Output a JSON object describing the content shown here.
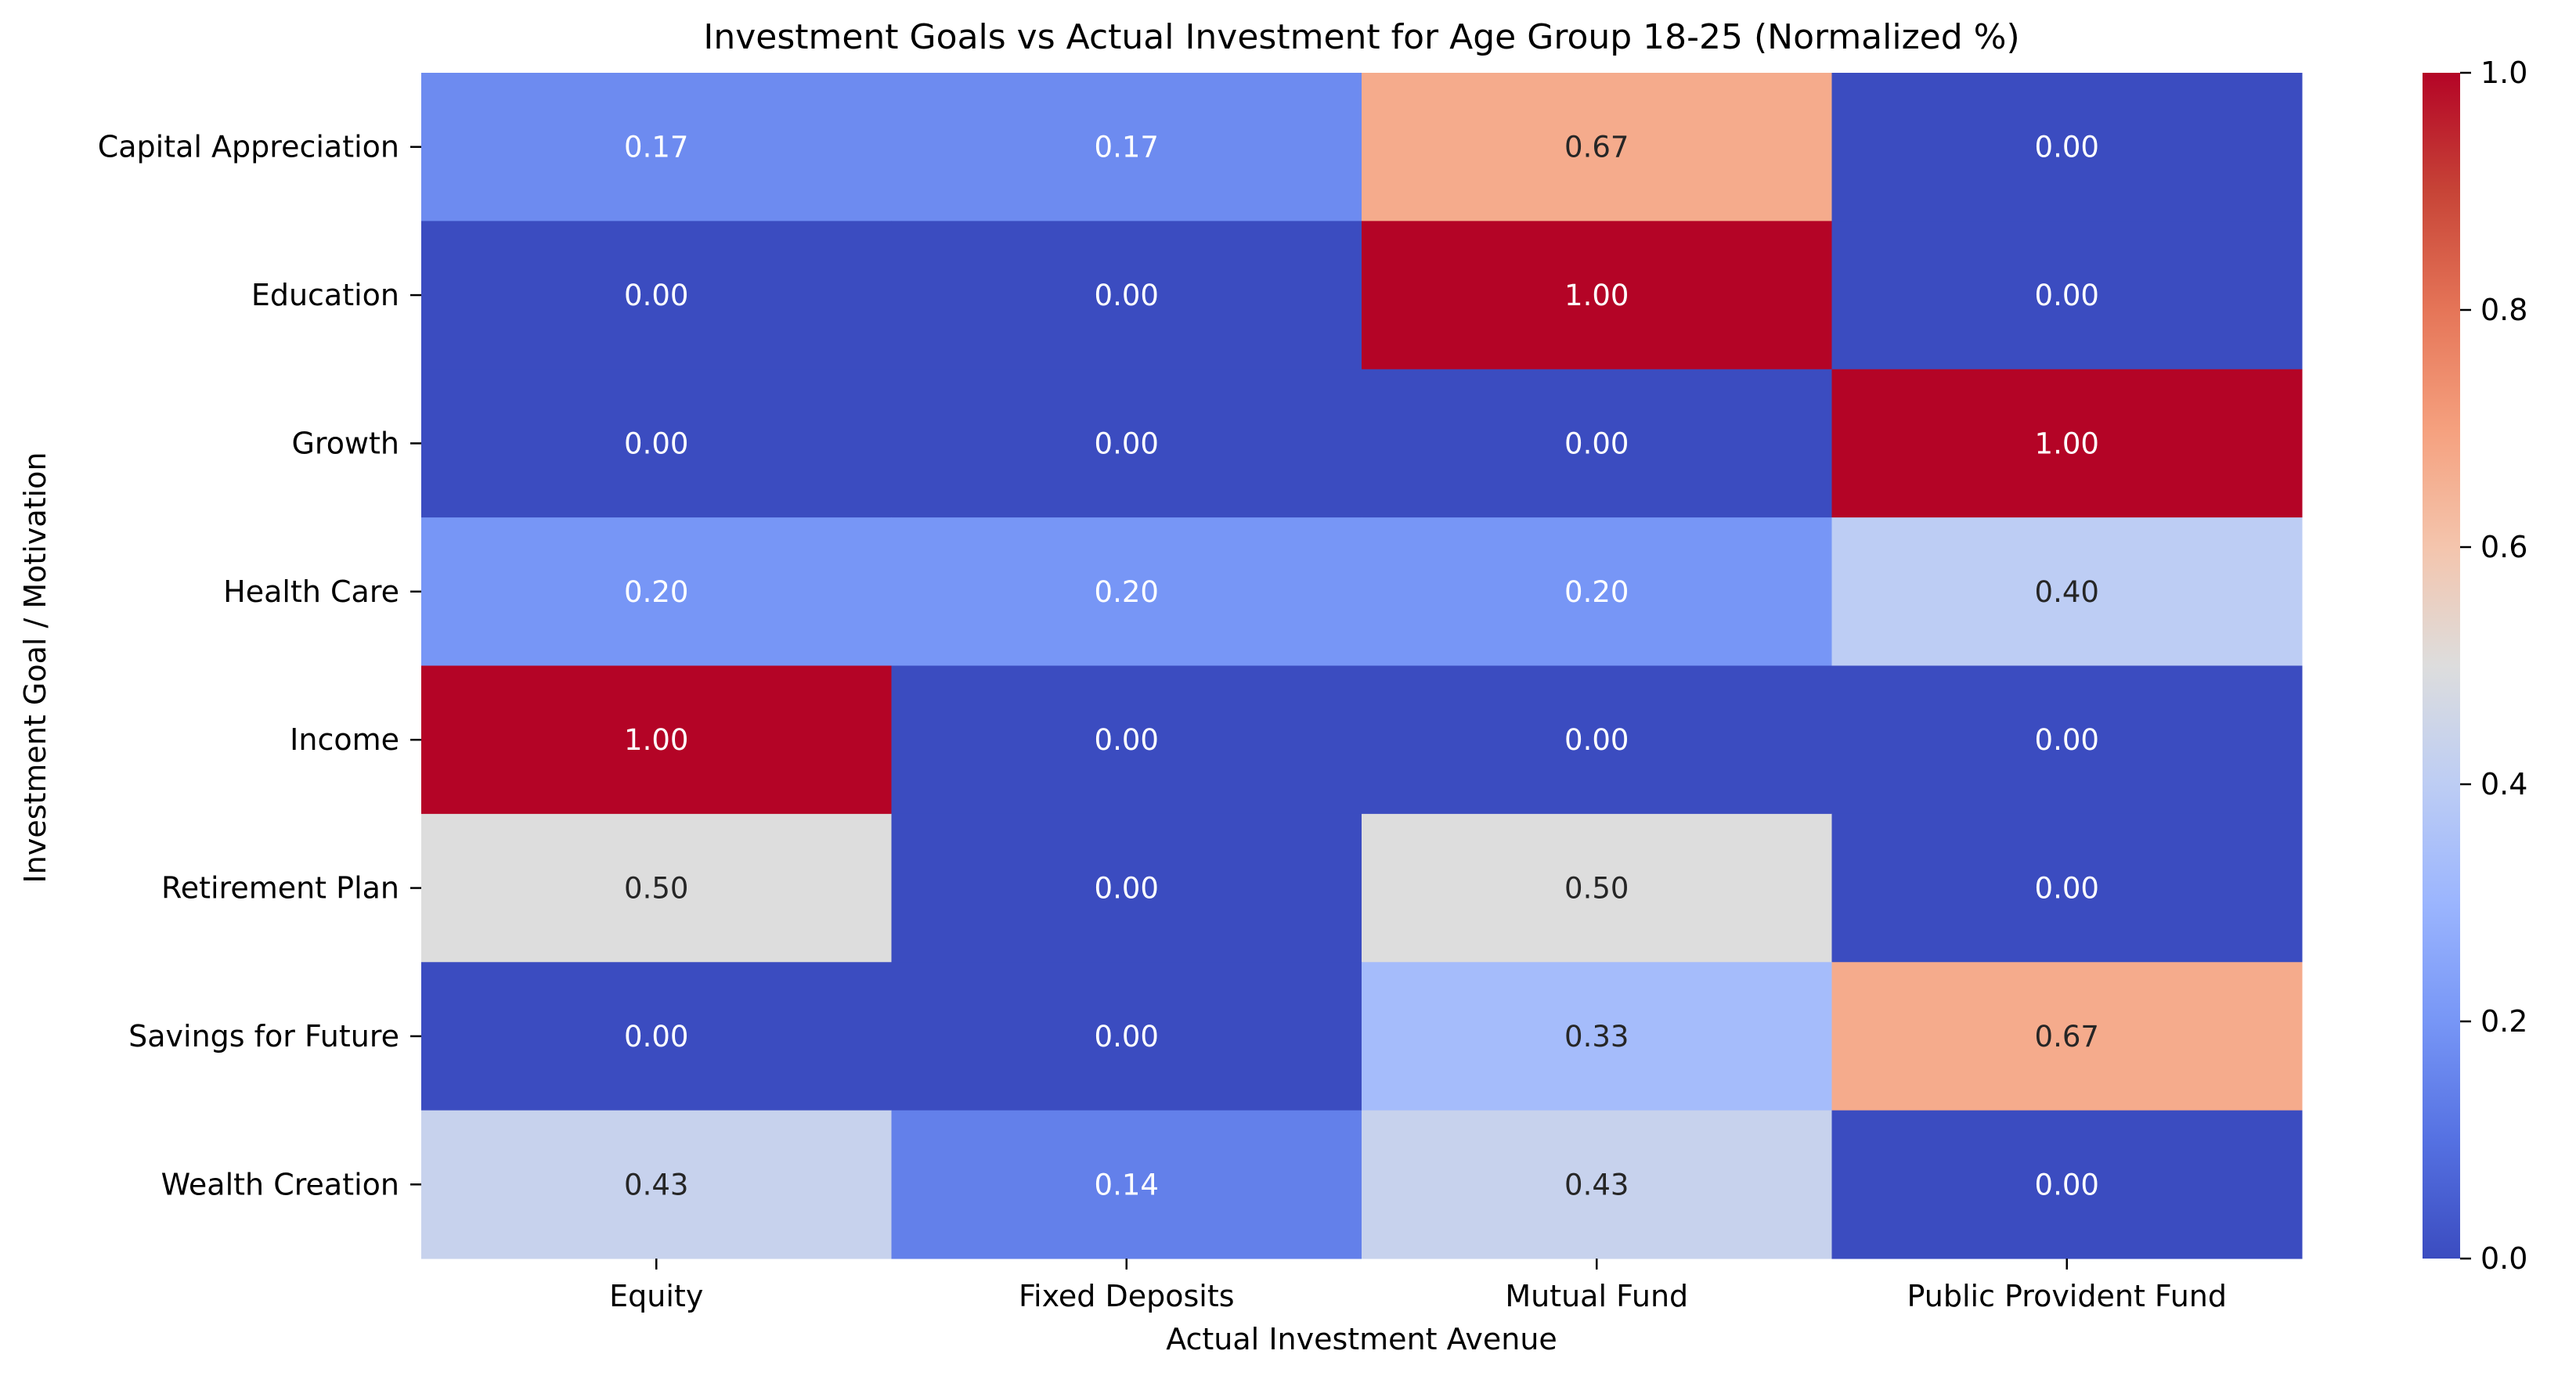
{
  "chart_data": {
    "type": "heatmap",
    "title": "Investment Goals vs Actual Investment for Age Group 18-25 (Normalized %)",
    "xlabel": "Actual Investment Avenue",
    "ylabel": "Investment Goal / Motivation",
    "columns": [
      "Equity",
      "Fixed Deposits",
      "Mutual Fund",
      "Public Provident Fund"
    ],
    "rows": [
      "Capital Appreciation",
      "Education",
      "Growth",
      "Health Care",
      "Income",
      "Retirement Plan",
      "Savings for Future",
      "Wealth Creation"
    ],
    "values": [
      [
        0.17,
        0.17,
        0.67,
        0.0
      ],
      [
        0.0,
        0.0,
        1.0,
        0.0
      ],
      [
        0.0,
        0.0,
        0.0,
        1.0
      ],
      [
        0.2,
        0.2,
        0.2,
        0.4
      ],
      [
        1.0,
        0.0,
        0.0,
        0.0
      ],
      [
        0.5,
        0.0,
        0.5,
        0.0
      ],
      [
        0.0,
        0.0,
        0.33,
        0.67
      ],
      [
        0.43,
        0.14,
        0.43,
        0.0
      ]
    ],
    "labels": [
      [
        "0.17",
        "0.17",
        "0.67",
        "0.00"
      ],
      [
        "0.00",
        "0.00",
        "1.00",
        "0.00"
      ],
      [
        "0.00",
        "0.00",
        "0.00",
        "1.00"
      ],
      [
        "0.20",
        "0.20",
        "0.20",
        "0.40"
      ],
      [
        "1.00",
        "0.00",
        "0.00",
        "0.00"
      ],
      [
        "0.50",
        "0.00",
        "0.50",
        "0.00"
      ],
      [
        "0.00",
        "0.00",
        "0.33",
        "0.67"
      ],
      [
        "0.43",
        "0.14",
        "0.43",
        "0.00"
      ]
    ],
    "colorbar": {
      "colormap": "coolwarm",
      "range": [
        0.0,
        1.0
      ],
      "ticks": [
        0.0,
        0.2,
        0.4,
        0.6,
        0.8,
        1.0
      ],
      "tick_labels": [
        "0.0",
        "0.2",
        "0.4",
        "0.6",
        "0.8",
        "1.0"
      ]
    },
    "grid": false,
    "legend": "none"
  }
}
